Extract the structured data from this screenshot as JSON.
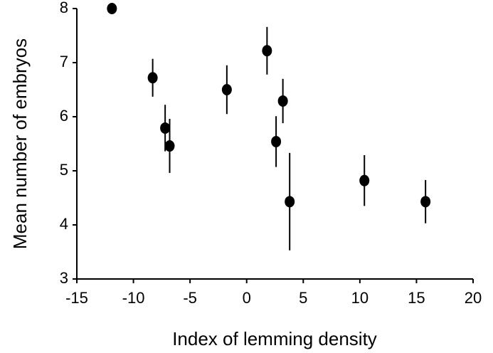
{
  "chart_data": {
    "type": "scatter",
    "xlabel": "Index of lemming density",
    "ylabel": "Mean number of embryos",
    "xlim": [
      -15,
      20
    ],
    "xticks": [
      -15,
      -10,
      -5,
      0,
      5,
      10,
      15,
      20
    ],
    "ylim": [
      3,
      8
    ],
    "yticks": [
      3,
      4,
      5,
      6,
      7,
      8
    ],
    "grid": false,
    "color": "#000000",
    "x": [
      -11.9,
      -8.3,
      -7.2,
      -6.8,
      -1.75,
      1.8,
      3.2,
      2.6,
      3.8,
      10.4,
      15.8
    ],
    "y": [
      8.0,
      6.72,
      5.79,
      5.46,
      6.5,
      7.22,
      6.29,
      5.54,
      4.43,
      4.82,
      4.43
    ],
    "yerr": [
      0,
      0.35,
      0.43,
      0.5,
      0.45,
      0.44,
      0.41,
      0.47,
      0.9,
      0.47,
      0.4
    ]
  }
}
